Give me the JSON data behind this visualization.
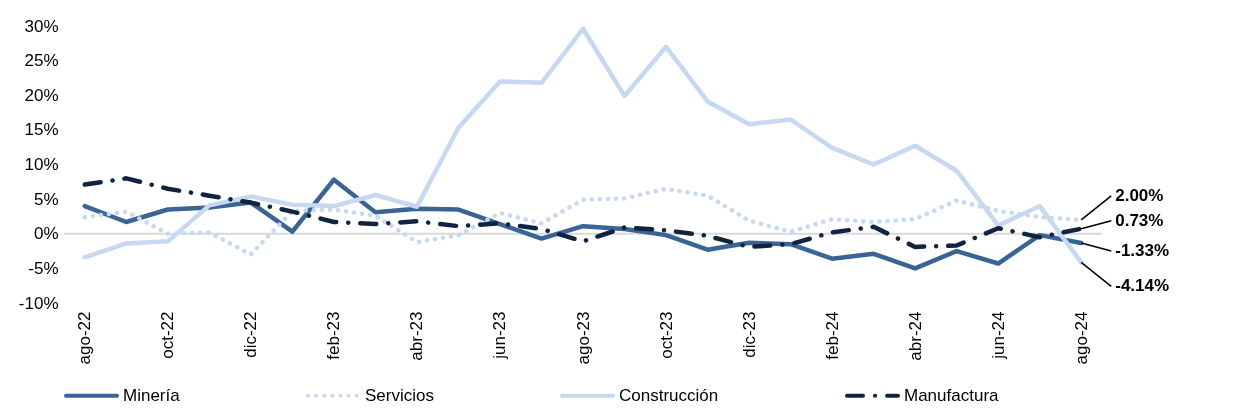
{
  "chart_data": {
    "type": "line",
    "categories": [
      "ago-22",
      null,
      "oct-22",
      null,
      "dic-22",
      null,
      "feb-23",
      null,
      "abr-23",
      null,
      "jun-23",
      null,
      "ago-23",
      null,
      "oct-23",
      null,
      "dic-23",
      null,
      "feb-24",
      null,
      "abr-24",
      null,
      "jun-24",
      null,
      "ago-24"
    ],
    "series": [
      {
        "name": "Minería",
        "color": "#3a6496",
        "line_style": "solid",
        "values": [
          4.0,
          1.7,
          3.5,
          3.8,
          4.5,
          0.3,
          7.8,
          3.1,
          3.6,
          3.5,
          1.4,
          -0.7,
          1.1,
          0.7,
          -0.2,
          -2.3,
          -1.3,
          -1.5,
          -3.6,
          -2.9,
          -5.0,
          -2.5,
          -4.3,
          -0.2,
          -1.33
        ],
        "value_labels": [
          null,
          null,
          null,
          null,
          null,
          null,
          null,
          null,
          null,
          null,
          null,
          null,
          null,
          null,
          null,
          null,
          null,
          null,
          null,
          null,
          null,
          null,
          null,
          null,
          "-1.33%"
        ]
      },
      {
        "name": "Servicios",
        "color": "#c6d9f0",
        "line_style": "dotted",
        "values": [
          2.4,
          3.2,
          0.0,
          0.2,
          -3.0,
          3.3,
          3.5,
          2.6,
          -1.2,
          -0.2,
          3.0,
          1.5,
          4.9,
          5.1,
          6.5,
          5.5,
          1.9,
          0.3,
          2.1,
          1.7,
          2.1,
          4.8,
          3.3,
          2.4,
          2.0
        ],
        "value_labels": [
          null,
          null,
          null,
          null,
          null,
          null,
          null,
          null,
          null,
          null,
          null,
          null,
          null,
          null,
          null,
          null,
          null,
          null,
          null,
          null,
          null,
          null,
          null,
          null,
          "2.00%"
        ]
      },
      {
        "name": "Construcción",
        "color": "#c6d9f0",
        "line_style": "solid",
        "values": [
          -3.4,
          -1.4,
          -1.1,
          4.1,
          5.4,
          4.2,
          4.0,
          5.6,
          3.9,
          15.3,
          22.0,
          21.8,
          29.6,
          19.9,
          27.0,
          19.1,
          15.8,
          16.5,
          12.4,
          10.0,
          12.7,
          9.1,
          1.2,
          4.0,
          -4.14
        ],
        "value_labels": [
          null,
          null,
          null,
          null,
          null,
          null,
          null,
          null,
          null,
          null,
          null,
          null,
          null,
          null,
          null,
          null,
          null,
          null,
          null,
          null,
          null,
          null,
          null,
          null,
          "-4.14%"
        ]
      },
      {
        "name": "Manufactura",
        "color": "#0f243e",
        "line_style": "dashdot",
        "values": [
          7.1,
          8.0,
          6.5,
          5.5,
          4.5,
          3.2,
          1.7,
          1.4,
          1.8,
          1.1,
          1.5,
          0.7,
          -1.1,
          0.9,
          0.5,
          -0.3,
          -1.9,
          -1.5,
          0.2,
          1.0,
          -1.9,
          -1.7,
          0.8,
          -0.5,
          0.73
        ],
        "value_labels": [
          null,
          null,
          null,
          null,
          null,
          null,
          null,
          null,
          null,
          null,
          null,
          null,
          null,
          null,
          null,
          null,
          null,
          null,
          null,
          null,
          null,
          null,
          null,
          null,
          "0.73%"
        ]
      }
    ],
    "ylim": [
      -10,
      30
    ],
    "yticks": [
      {
        "value": -10,
        "label": "-10%"
      },
      {
        "value": -5,
        "label": "-5%"
      },
      {
        "value": 0,
        "label": "0%"
      },
      {
        "value": 5,
        "label": "5%"
      },
      {
        "value": 10,
        "label": "10%"
      },
      {
        "value": 15,
        "label": "15%"
      },
      {
        "value": 20,
        "label": "20%"
      },
      {
        "value": 25,
        "label": "25%"
      },
      {
        "value": 30,
        "label": "30%"
      }
    ],
    "ref_lines": [
      {
        "axis": "y",
        "value": 0,
        "color": "#d9d9d9"
      }
    ],
    "grid": false,
    "legend": "bottom"
  }
}
